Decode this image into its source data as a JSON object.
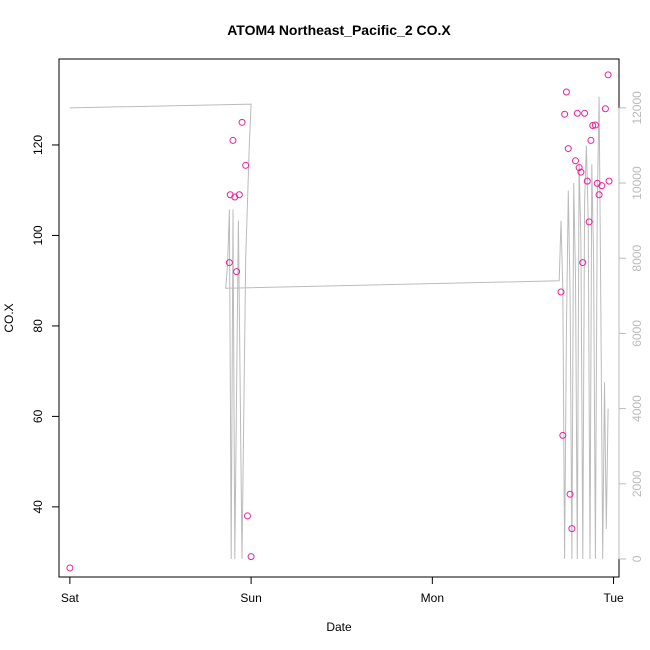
{
  "chart_data": {
    "type": "scatter",
    "title": "ATOM4 Northeast_Pacific_2 CO.X",
    "xlabel": "Date",
    "ylabel": "CO.X",
    "x_ticks": [
      "Sat",
      "Sun",
      "Mon",
      "Tue"
    ],
    "xlim_days": [
      -0.06,
      3.03
    ],
    "ylim": [
      24.5,
      139
    ],
    "y_ticks": [
      40,
      60,
      80,
      100,
      120
    ],
    "y2lim": [
      -480,
      13300
    ],
    "y2_ticks": [
      0,
      2000,
      4000,
      6000,
      8000,
      10000,
      12000
    ],
    "point_color": "#e8219a",
    "line_color": "#bbbbbb",
    "grid": false,
    "series": [
      {
        "kind": "points",
        "x": [
          0.0,
          0.88,
          0.885,
          0.9,
          0.91,
          0.92,
          0.935,
          0.95,
          0.97,
          0.98,
          1.0,
          2.71,
          2.72,
          2.73,
          2.74,
          2.75,
          2.76,
          2.77,
          2.79,
          2.8,
          2.81,
          2.82,
          2.83,
          2.84,
          2.855,
          2.865,
          2.875,
          2.885,
          2.9,
          2.91,
          2.92,
          2.935,
          2.955,
          2.97,
          2.975
        ],
        "y": [
          26.5,
          94,
          109,
          121,
          108.5,
          92,
          109,
          125,
          115.5,
          38,
          29,
          87.5,
          55.8,
          126.8,
          131.7,
          119.2,
          42.8,
          35.2,
          116.5,
          127,
          115,
          114,
          94,
          127,
          112,
          103,
          121,
          124.3,
          124.4,
          111.5,
          109,
          111,
          128,
          135.5,
          112
        ]
      },
      {
        "kind": "line",
        "x": [
          0.0,
          1.0,
          0.99,
          0.98,
          0.97,
          0.95,
          0.93,
          0.91,
          0.9,
          0.89,
          0.88,
          0.87,
          0.86,
          2.7,
          2.71,
          2.72,
          2.73,
          2.74,
          2.75,
          2.76,
          2.77,
          2.78,
          2.79,
          2.8,
          2.81,
          2.82,
          2.83,
          2.84,
          2.85,
          2.86,
          2.87,
          2.88,
          2.89,
          2.9,
          2.91,
          2.92,
          2.93,
          2.94,
          2.95,
          2.96,
          2.97
        ],
        "y2": [
          12000,
          12100,
          11000,
          9500,
          8000,
          0,
          9000,
          0,
          9300,
          0,
          9300,
          7800,
          7200,
          7400,
          9000,
          7200,
          0,
          6000,
          9800,
          7000,
          0,
          10000,
          7500,
          0,
          10500,
          8500,
          0,
          9500,
          11000,
          9000,
          0,
          10500,
          8000,
          0,
          9500,
          12300,
          6500,
          0,
          4700,
          800,
          4000
        ]
      }
    ]
  }
}
